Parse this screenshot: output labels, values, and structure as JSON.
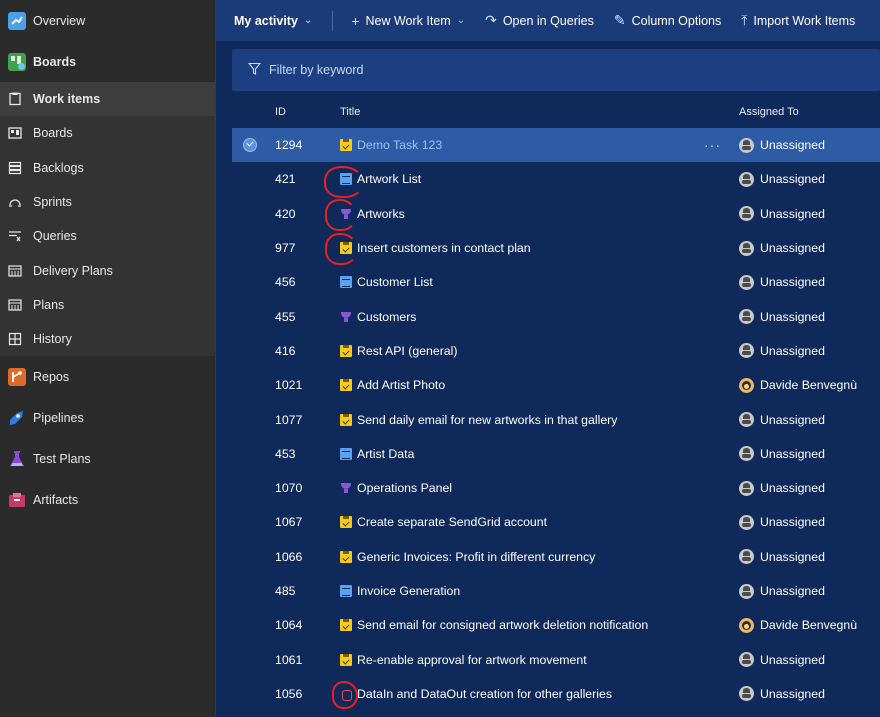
{
  "sidebar": {
    "items": [
      {
        "label": "Overview",
        "icon": "overview-icon",
        "color": "#4a9fe8"
      },
      {
        "label": "Boards",
        "icon": "boards-tile-icon",
        "color": "#3fa14a"
      }
    ],
    "sub_items": [
      {
        "label": "Work items",
        "icon": "work-items-icon",
        "active": true
      },
      {
        "label": "Boards",
        "icon": "boards-icon"
      },
      {
        "label": "Backlogs",
        "icon": "backlogs-icon"
      },
      {
        "label": "Sprints",
        "icon": "sprints-icon"
      },
      {
        "label": "Queries",
        "icon": "queries-icon"
      },
      {
        "label": "Delivery Plans",
        "icon": "delivery-plans-icon"
      },
      {
        "label": "Plans",
        "icon": "plans-icon"
      },
      {
        "label": "History",
        "icon": "history-icon"
      }
    ],
    "bottom_items": [
      {
        "label": "Repos",
        "icon": "repos-icon",
        "color": "#e06a2a"
      },
      {
        "label": "Pipelines",
        "icon": "pipelines-icon",
        "color": "#2a7fe0"
      },
      {
        "label": "Test Plans",
        "icon": "test-plans-icon",
        "color": "#8a4ad6"
      },
      {
        "label": "Artifacts",
        "icon": "artifacts-icon",
        "color": "#c63a6a"
      }
    ]
  },
  "toolbar": {
    "view": "My activity",
    "new_item": "New Work Item",
    "open_queries": "Open in Queries",
    "column_options": "Column Options",
    "import": "Import Work Items"
  },
  "filter": {
    "placeholder": "Filter by keyword"
  },
  "table": {
    "headers": {
      "id": "ID",
      "title": "Title",
      "assigned": "Assigned To"
    },
    "rows": [
      {
        "id": "1294",
        "type": "task",
        "title": "Demo Task 123",
        "assigned": "Unassigned",
        "avatar": "unassigned"
      },
      {
        "id": "421",
        "type": "pbi",
        "title": "Artwork List",
        "assigned": "Unassigned",
        "avatar": "unassigned"
      },
      {
        "id": "420",
        "type": "feature",
        "title": "Artworks",
        "assigned": "Unassigned",
        "avatar": "unassigned"
      },
      {
        "id": "977",
        "type": "task",
        "title": "Insert customers in contact plan",
        "assigned": "Unassigned",
        "avatar": "unassigned"
      },
      {
        "id": "456",
        "type": "pbi",
        "title": "Customer List",
        "assigned": "Unassigned",
        "avatar": "unassigned"
      },
      {
        "id": "455",
        "type": "feature",
        "title": "Customers",
        "assigned": "Unassigned",
        "avatar": "unassigned"
      },
      {
        "id": "416",
        "type": "task",
        "title": "Rest API (general)",
        "assigned": "Unassigned",
        "avatar": "unassigned"
      },
      {
        "id": "1021",
        "type": "task",
        "title": "Add Artist Photo",
        "assigned": "Davide Benvegnù",
        "avatar": "person"
      },
      {
        "id": "1077",
        "type": "task",
        "title": "Send daily email for new artworks in that gallery",
        "assigned": "Unassigned",
        "avatar": "unassigned"
      },
      {
        "id": "453",
        "type": "pbi",
        "title": "Artist Data",
        "assigned": "Unassigned",
        "avatar": "unassigned"
      },
      {
        "id": "1070",
        "type": "feature",
        "title": "Operations Panel",
        "assigned": "Unassigned",
        "avatar": "unassigned"
      },
      {
        "id": "1067",
        "type": "task",
        "title": "Create separate SendGrid account",
        "assigned": "Unassigned",
        "avatar": "unassigned"
      },
      {
        "id": "1066",
        "type": "task",
        "title": "Generic Invoices: Profit in different currency",
        "assigned": "Unassigned",
        "avatar": "unassigned"
      },
      {
        "id": "485",
        "type": "pbi",
        "title": "Invoice Generation",
        "assigned": "Unassigned",
        "avatar": "unassigned"
      },
      {
        "id": "1064",
        "type": "task",
        "title": "Send email for consigned artwork deletion notification",
        "assigned": "Davide Benvegnù",
        "avatar": "person"
      },
      {
        "id": "1061",
        "type": "task",
        "title": "Re-enable approval for artwork movement",
        "assigned": "Unassigned",
        "avatar": "unassigned"
      },
      {
        "id": "1056",
        "type": "bug",
        "title": "DataIn and DataOut creation for other galleries",
        "assigned": "Unassigned",
        "avatar": "unassigned"
      }
    ]
  }
}
